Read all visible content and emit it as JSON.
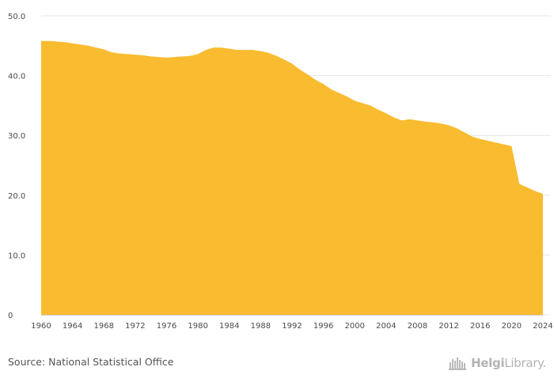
{
  "chart_data": {
    "type": "area",
    "title": "",
    "xlabel": "",
    "ylabel": "",
    "x": [
      1960,
      1961,
      1962,
      1963,
      1964,
      1965,
      1966,
      1967,
      1968,
      1969,
      1970,
      1971,
      1972,
      1973,
      1974,
      1975,
      1976,
      1977,
      1978,
      1979,
      1980,
      1981,
      1982,
      1983,
      1984,
      1985,
      1986,
      1987,
      1988,
      1989,
      1990,
      1991,
      1992,
      1993,
      1994,
      1995,
      1996,
      1997,
      1998,
      1999,
      2000,
      2001,
      2002,
      2003,
      2004,
      2005,
      2006,
      2007,
      2008,
      2009,
      2010,
      2011,
      2012,
      2013,
      2014,
      2015,
      2016,
      2017,
      2018,
      2019,
      2020,
      2021,
      2022,
      2023,
      2024
    ],
    "series": [
      {
        "values": [
          45.8,
          45.8,
          45.7,
          45.6,
          45.4,
          45.2,
          45.0,
          44.7,
          44.4,
          43.9,
          43.7,
          43.6,
          43.5,
          43.4,
          43.2,
          43.1,
          43.0,
          43.1,
          43.2,
          43.3,
          43.6,
          44.3,
          44.7,
          44.7,
          44.5,
          44.3,
          44.3,
          44.3,
          44.1,
          43.8,
          43.3,
          42.7,
          42.0,
          41.0,
          40.2,
          39.3,
          38.6,
          37.7,
          37.1,
          36.5,
          35.8,
          35.4,
          35.0,
          34.3,
          33.7,
          33.0,
          32.5,
          32.7,
          32.5,
          32.3,
          32.2,
          32.0,
          31.7,
          31.2,
          30.5,
          29.8,
          29.4,
          29.1,
          28.8,
          28.5,
          28.2,
          21.9,
          21.3,
          20.7,
          20.2
        ]
      }
    ],
    "ylim": [
      0,
      50
    ],
    "yticks": [
      "0",
      "10.0",
      "20.0",
      "30.0",
      "40.0",
      "50.0"
    ],
    "xticks": [
      "1960",
      "1964",
      "1968",
      "1972",
      "1976",
      "1980",
      "1984",
      "1988",
      "1992",
      "1996",
      "2000",
      "2004",
      "2008",
      "2012",
      "2016",
      "2020",
      "2024"
    ],
    "grid": "horizontal",
    "colors": {
      "area_fill": "#f9bc30",
      "grid": "#e6e6e6",
      "axis_text": "#4a4a4a"
    }
  },
  "footer": {
    "source": "Source: National Statistical Office",
    "brand_part1": "Helgi",
    "brand_part2": "Library."
  },
  "icons": {
    "brand_logo": "helgi-library-logo-icon"
  }
}
